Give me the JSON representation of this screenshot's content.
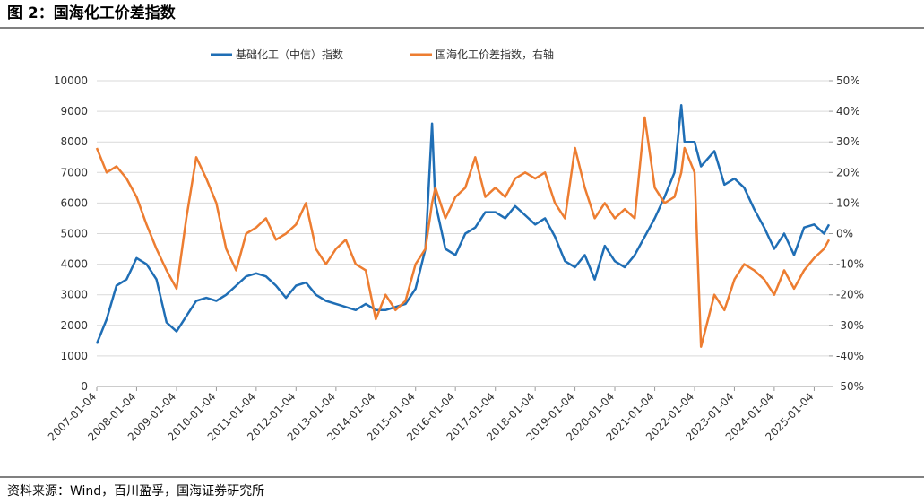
{
  "chart_data": {
    "type": "line",
    "title": "图 2：国海化工价差指数",
    "source": "资料来源：Wind，百川盈孚，国海证券研究所",
    "x": [
      "2007-01-04",
      "2007-04-04",
      "2007-07-04",
      "2007-10-04",
      "2008-01-04",
      "2008-04-04",
      "2008-07-04",
      "2008-10-04",
      "2009-01-04",
      "2009-04-04",
      "2009-07-04",
      "2009-10-04",
      "2010-01-04",
      "2010-04-04",
      "2010-07-04",
      "2010-10-04",
      "2011-01-04",
      "2011-04-04",
      "2011-07-04",
      "2011-10-04",
      "2012-01-04",
      "2012-04-04",
      "2012-07-04",
      "2012-10-04",
      "2013-01-04",
      "2013-04-04",
      "2013-07-04",
      "2013-10-04",
      "2014-01-04",
      "2014-04-04",
      "2014-07-04",
      "2014-10-04",
      "2015-01-04",
      "2015-04-04",
      "2015-06-04",
      "2015-07-04",
      "2015-10-04",
      "2016-01-04",
      "2016-04-04",
      "2016-07-04",
      "2016-10-04",
      "2017-01-04",
      "2017-04-04",
      "2017-07-04",
      "2017-10-04",
      "2018-01-04",
      "2018-04-04",
      "2018-07-04",
      "2018-10-04",
      "2019-01-04",
      "2019-04-04",
      "2019-07-04",
      "2019-10-04",
      "2020-01-04",
      "2020-04-04",
      "2020-07-04",
      "2020-10-04",
      "2021-01-04",
      "2021-04-04",
      "2021-07-04",
      "2021-09-04",
      "2021-10-04",
      "2022-01-04",
      "2022-03-04",
      "2022-07-04",
      "2022-10-04",
      "2023-01-04",
      "2023-04-04",
      "2023-07-04",
      "2023-10-04",
      "2024-01-04",
      "2024-04-04",
      "2024-07-04",
      "2024-10-04",
      "2025-01-04",
      "2025-04-04",
      "2025-05-20"
    ],
    "series": [
      {
        "name": "基础化工（中信）指数",
        "color": "#1f6eb5",
        "values": [
          1400,
          2200,
          3300,
          3500,
          4200,
          4000,
          3500,
          2100,
          1800,
          2300,
          2800,
          2900,
          2800,
          3000,
          3300,
          3600,
          3700,
          3600,
          3300,
          2900,
          3300,
          3400,
          3000,
          2800,
          2700,
          2600,
          2500,
          2700,
          2500,
          2500,
          2600,
          2700,
          3200,
          4500,
          8600,
          6000,
          4500,
          4300,
          5000,
          5200,
          5700,
          5700,
          5500,
          5900,
          5600,
          5300,
          5500,
          4900,
          4100,
          3900,
          4300,
          3500,
          4600,
          4100,
          3900,
          4300,
          4900,
          5500,
          6200,
          7000,
          9200,
          8000,
          8000,
          7200,
          7700,
          6600,
          6800,
          6500,
          5800,
          5200,
          4500,
          5000,
          4300,
          5200,
          5300,
          5000,
          5300
        ]
      },
      {
        "name": "国海化工价差指数，右轴",
        "color": "#ed7d31",
        "axis": "y2",
        "values": [
          28,
          20,
          22,
          18,
          12,
          3,
          -5,
          -12,
          -18,
          5,
          25,
          18,
          10,
          -5,
          -12,
          0,
          2,
          5,
          -2,
          0,
          3,
          10,
          -5,
          -10,
          -5,
          -2,
          -10,
          -12,
          -28,
          -20,
          -25,
          -22,
          -10,
          -5,
          10,
          15,
          5,
          12,
          15,
          25,
          12,
          15,
          12,
          18,
          20,
          18,
          20,
          10,
          5,
          28,
          15,
          5,
          10,
          5,
          8,
          5,
          38,
          15,
          10,
          12,
          20,
          28,
          20,
          -37,
          -20,
          -25,
          -15,
          -10,
          -12,
          -15,
          -20,
          -12,
          -18,
          -12,
          -8,
          -5,
          -2
        ]
      }
    ],
    "xlim": [
      "2007-01-04",
      "2025-05-20"
    ],
    "xticks": [
      "2007-01-04",
      "2008-01-04",
      "2009-01-04",
      "2010-01-04",
      "2011-01-04",
      "2012-01-04",
      "2013-01-04",
      "2014-01-04",
      "2015-01-04",
      "2016-01-04",
      "2017-01-04",
      "2018-01-04",
      "2019-01-04",
      "2020-01-04",
      "2021-01-04",
      "2022-01-04",
      "2023-01-04",
      "2024-01-04",
      "2025-01-04"
    ],
    "ylim": [
      0,
      10000
    ],
    "yticks": [
      0,
      1000,
      2000,
      3000,
      4000,
      5000,
      6000,
      7000,
      8000,
      9000,
      10000
    ],
    "y2lim": [
      -50,
      50
    ],
    "y2ticks": [
      {
        "value": -50,
        "label": "-50%"
      },
      {
        "value": -40,
        "label": "-40%"
      },
      {
        "value": -30,
        "label": "-30%"
      },
      {
        "value": -20,
        "label": "-20%"
      },
      {
        "value": -10,
        "label": "-10%"
      },
      {
        "value": 0,
        "label": "0%"
      },
      {
        "value": 10,
        "label": "10%"
      },
      {
        "value": 20,
        "label": "20%"
      },
      {
        "value": 30,
        "label": "30%"
      },
      {
        "value": 40,
        "label": "40%"
      },
      {
        "value": 50,
        "label": "50%"
      }
    ],
    "grid": true,
    "legend": "top"
  }
}
